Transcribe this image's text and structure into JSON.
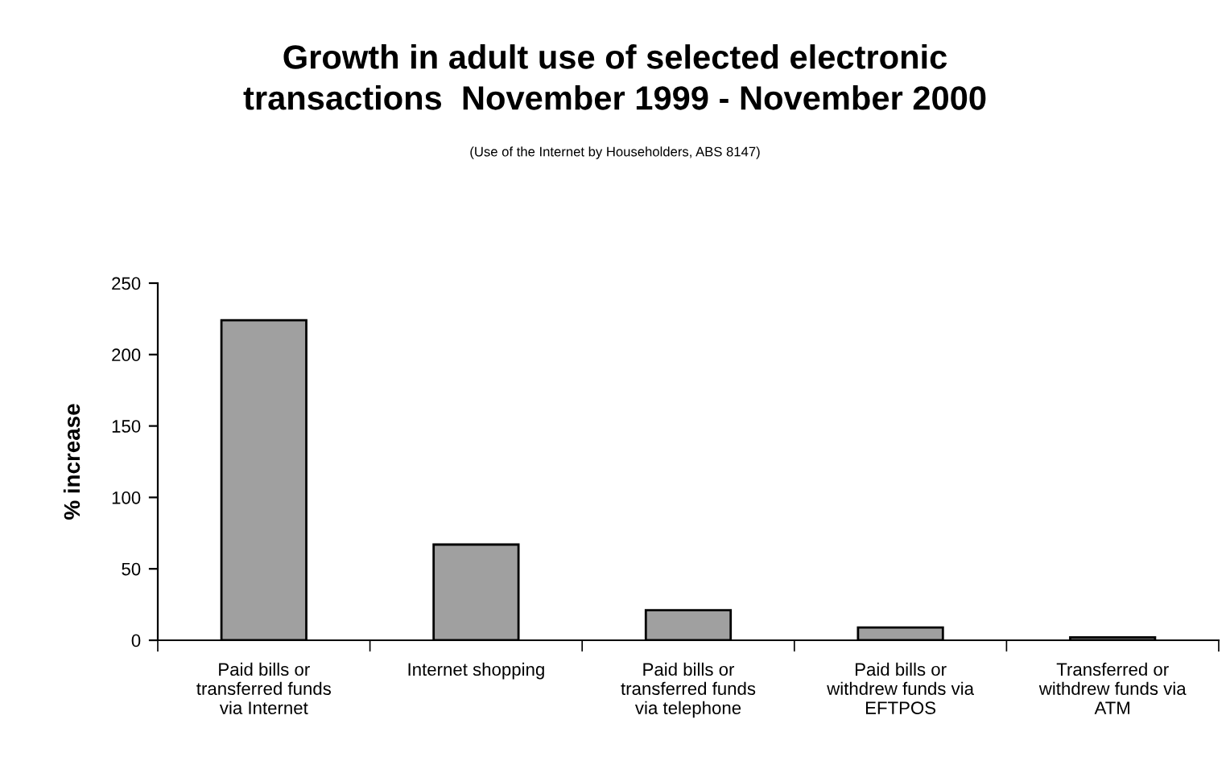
{
  "chart_data": {
    "type": "bar",
    "title": "Growth in adult use of selected electronic\ntransactions  November 1999 - November 2000",
    "subtitle": "(Use of the Internet by Householders, ABS 8147)",
    "ylabel": "% increase",
    "categories": [
      "Paid bills or\ntransferred funds\nvia Internet",
      "Internet shopping",
      "Paid bills or\ntransferred funds\nvia telephone",
      "Paid bills or\nwithdrew funds via\nEFTPOS",
      "Transferred or\nwithdrew funds via\nATM"
    ],
    "values": [
      224,
      67,
      21,
      9,
      2
    ],
    "color": "#a0a0a0",
    "ylim": [
      0,
      250
    ],
    "yticks": [
      0,
      50,
      100,
      150,
      200,
      250
    ],
    "grid": false,
    "legend": false
  }
}
